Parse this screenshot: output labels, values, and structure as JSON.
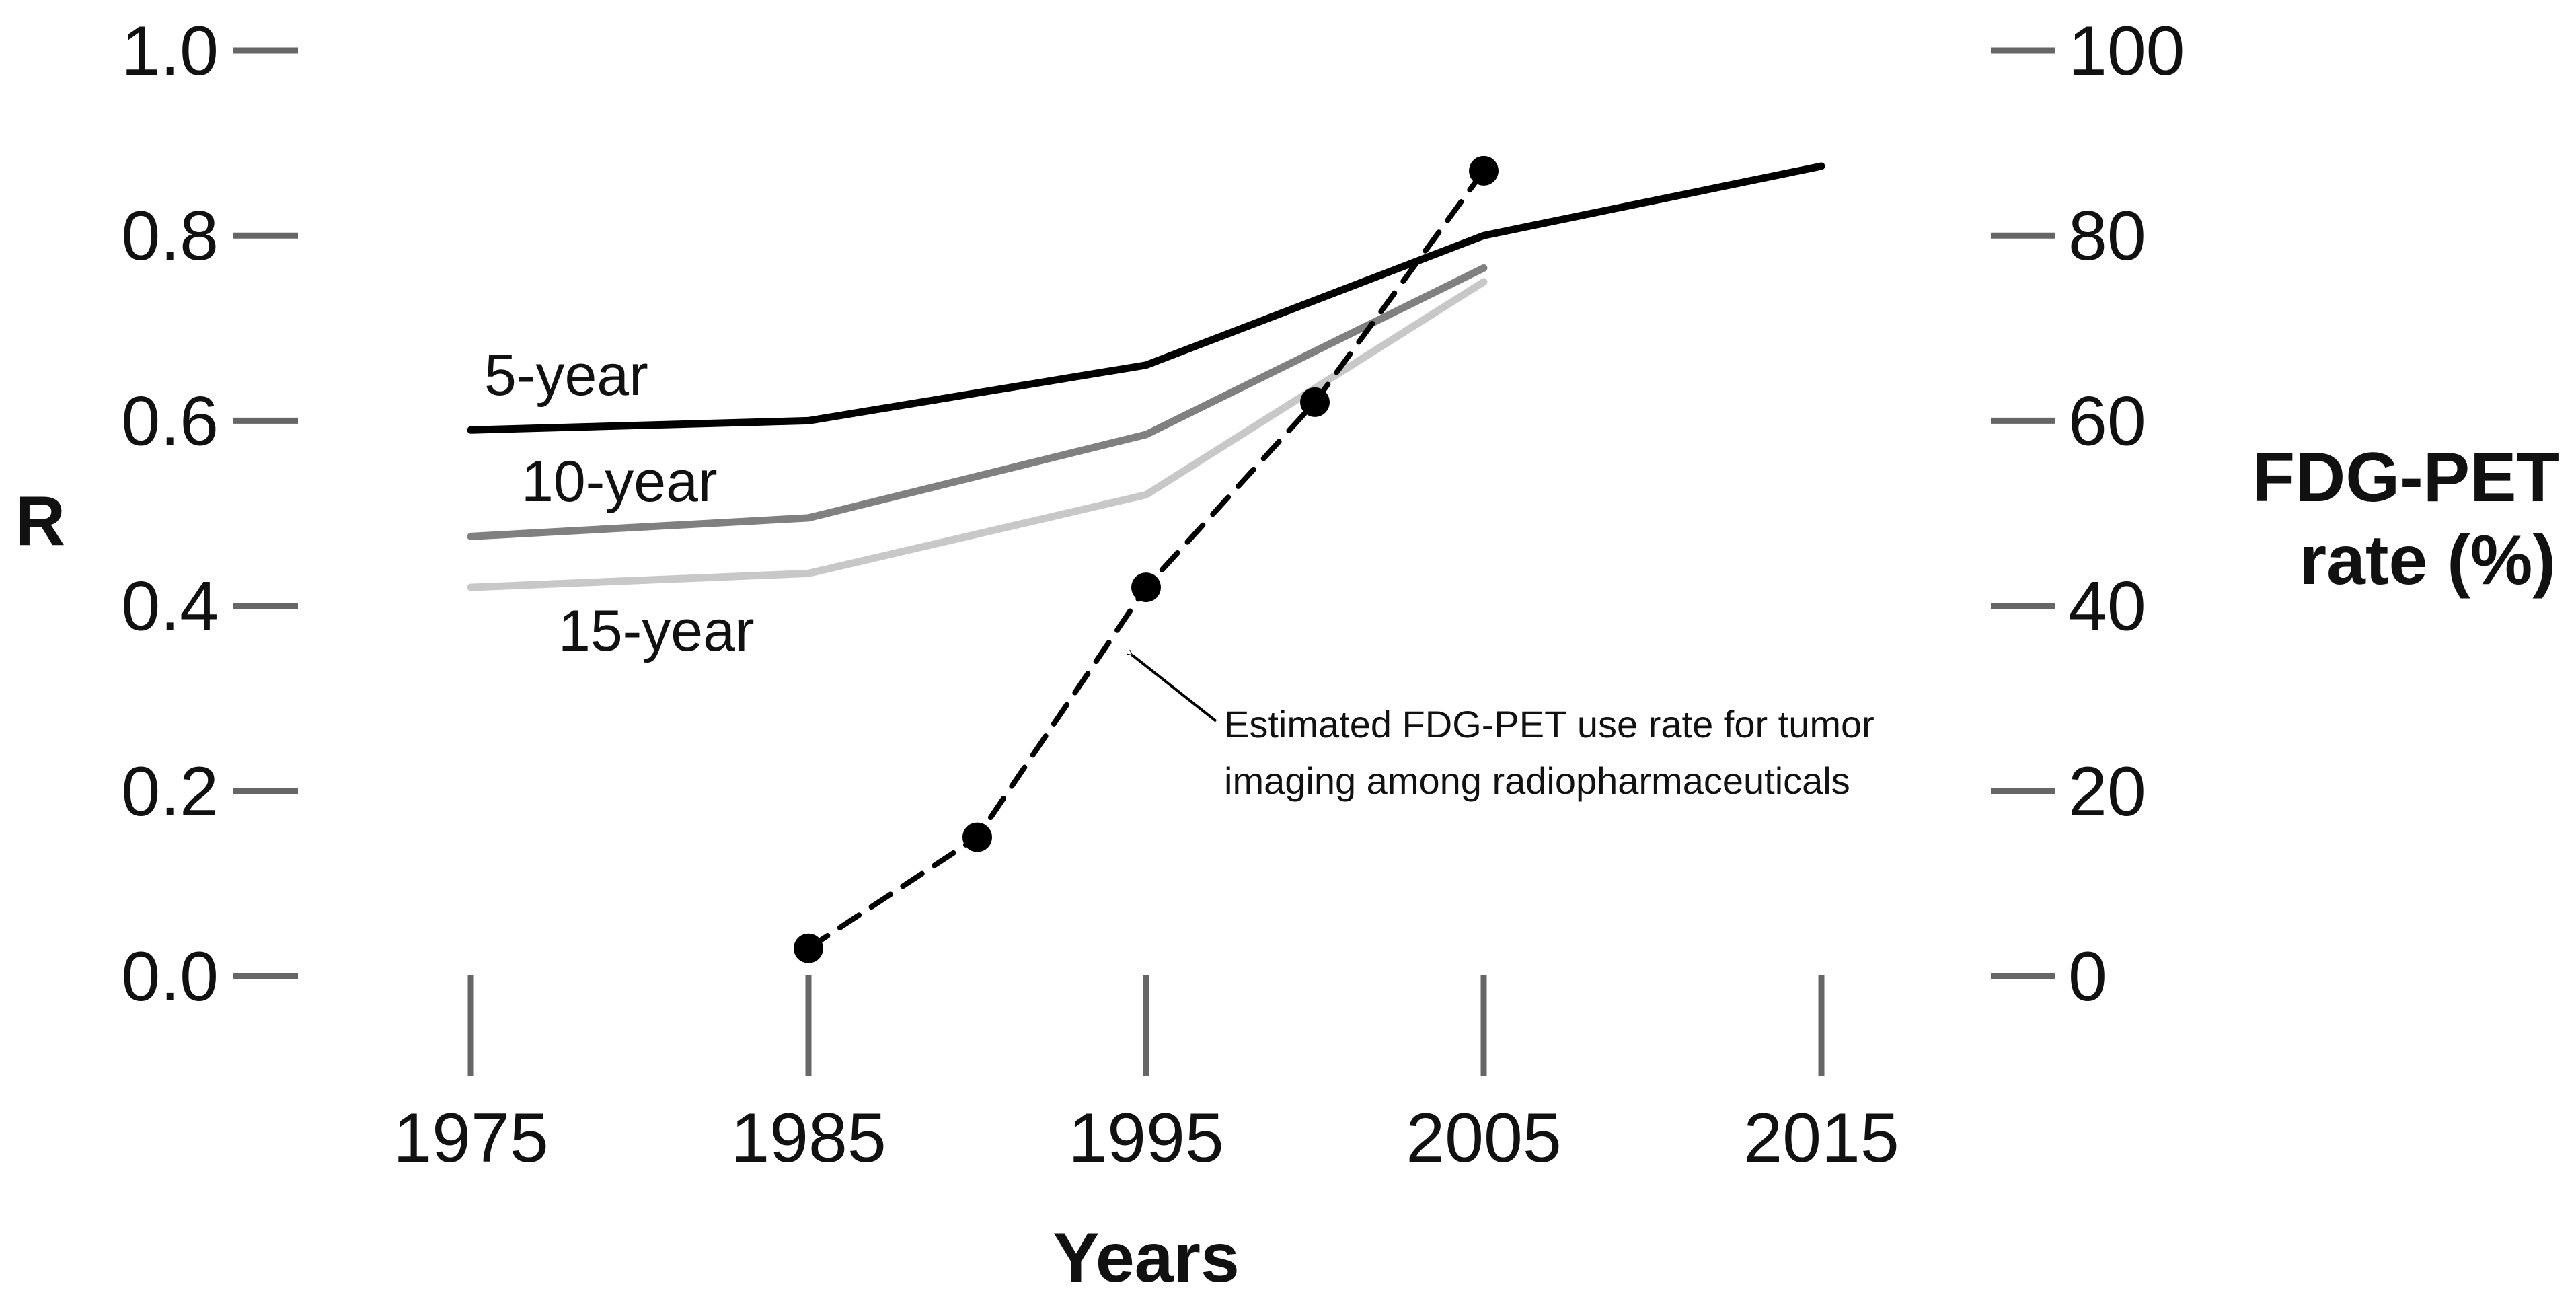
{
  "chart_data": {
    "type": "line",
    "xlabel": "Years",
    "ylabel_left": "R",
    "ylabel_right": [
      "FDG-PET",
      "rate (%)"
    ],
    "x_ticks": [
      1975,
      1985,
      1995,
      2005,
      2015
    ],
    "xlim": [
      1975,
      2015
    ],
    "ylim_left": [
      0,
      1.0
    ],
    "y_ticks_left": [
      "0.0",
      "0.2",
      "0.4",
      "0.6",
      "0.8",
      "1.0"
    ],
    "ylim_right": [
      0,
      100
    ],
    "y_ticks_right": [
      "0",
      "20",
      "40",
      "60",
      "80",
      "100"
    ],
    "grid": false,
    "legend": "none",
    "series": [
      {
        "name": "5-year",
        "axis": "left",
        "color": "#000000",
        "x": [
          1975,
          1985,
          1995,
          2005,
          2015
        ],
        "y": [
          0.59,
          0.6,
          0.66,
          0.8,
          0.875
        ]
      },
      {
        "name": "10-year",
        "axis": "left",
        "color": "#808080",
        "x": [
          1975,
          1985,
          1995,
          2005
        ],
        "y": [
          0.475,
          0.495,
          0.585,
          0.765
        ]
      },
      {
        "name": "15-year",
        "axis": "left",
        "color": "#c8c8c8",
        "x": [
          1975,
          1985,
          1995,
          2005
        ],
        "y": [
          0.42,
          0.435,
          0.52,
          0.75
        ]
      },
      {
        "name": "",
        "axis": "right",
        "style": "dashed-with-markers",
        "color": "#000000",
        "x": [
          1985,
          1990,
          1995,
          2000,
          2005
        ],
        "y": [
          3,
          15,
          42,
          62,
          87
        ]
      }
    ],
    "annotation": {
      "lines": [
        "Estimated FDG-PET use rate for tumor",
        "imaging among radiopharmaceuticals"
      ],
      "points_to_x": 1994.5,
      "points_to_y": 35
    }
  }
}
